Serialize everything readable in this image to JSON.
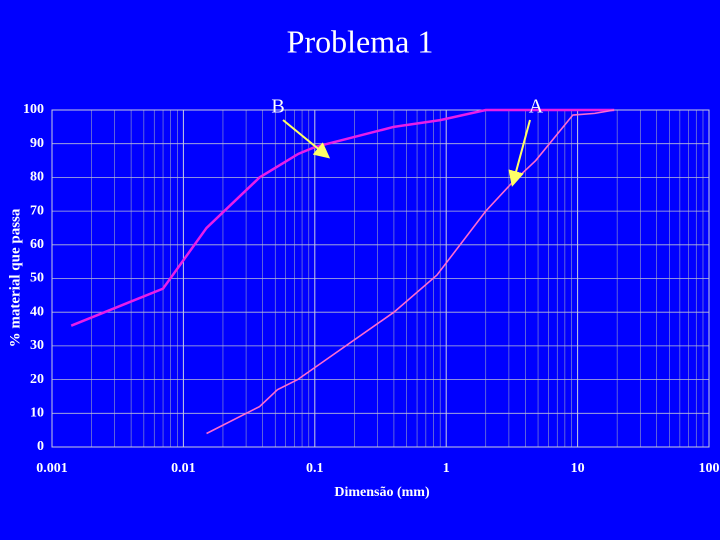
{
  "chart_data": {
    "type": "line",
    "title": "Problema 1",
    "x_label": "Dimensão (mm)",
    "y_label": "% material que passa",
    "xscale": "log",
    "grid": true,
    "xlim": [
      0.001,
      100
    ],
    "xticks": [
      0.001,
      0.01,
      0.1,
      1,
      10,
      100
    ],
    "ylim": [
      0,
      100
    ],
    "yticks": [
      0,
      10,
      20,
      30,
      40,
      50,
      60,
      70,
      80,
      90,
      100
    ],
    "series": [
      {
        "name": "B",
        "color": "#e81ee8",
        "x": [
          0.0014,
          0.007,
          0.015,
          0.038,
          0.075,
          0.1,
          0.4,
          0.9,
          2,
          19
        ],
        "values": [
          36,
          47,
          65,
          80,
          87,
          89,
          95,
          97,
          100,
          100
        ]
      },
      {
        "name": "A",
        "color": "#ff6ad0",
        "x": [
          0.015,
          0.038,
          0.052,
          0.074,
          0.4,
          0.85,
          2,
          3.1,
          4.8,
          9.2,
          13.5,
          19
        ],
        "values": [
          4,
          12,
          17,
          20,
          40,
          51,
          70,
          78,
          85,
          98.5,
          99,
          100
        ]
      }
    ]
  }
}
